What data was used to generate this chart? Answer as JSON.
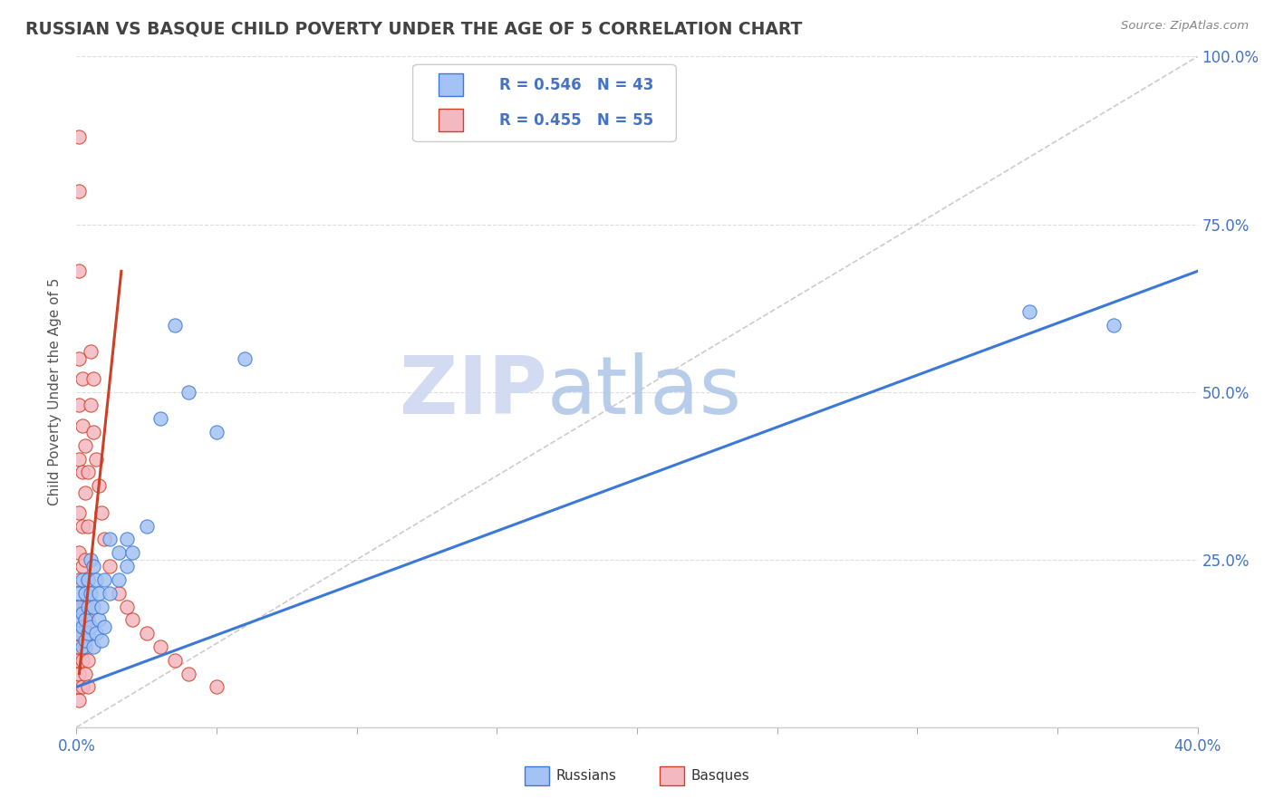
{
  "title": "RUSSIAN VS BASQUE CHILD POVERTY UNDER THE AGE OF 5 CORRELATION CHART",
  "source": "Source: ZipAtlas.com",
  "ylabel": "Child Poverty Under the Age of 5",
  "legend_russians": "Russians",
  "legend_basques": "Basques",
  "r_russian": "R = 0.546",
  "n_russian": "N = 43",
  "r_basque": "R = 0.455",
  "n_basque": "N = 55",
  "color_russian": "#a4c2f4",
  "color_basque": "#f4b8c1",
  "line_russian": "#3c78d8",
  "line_basque": "#cc4125",
  "diagonal_color": "#cccccc",
  "watermark_zip": "ZIP",
  "watermark_atlas": "atlas",
  "xlim": [
    0.0,
    0.4
  ],
  "ylim": [
    0.0,
    1.0
  ],
  "yticks": [
    0.0,
    0.25,
    0.5,
    0.75,
    1.0
  ],
  "ytick_labels": [
    "",
    "25.0%",
    "50.0%",
    "75.0%",
    "100.0%"
  ],
  "russian_scatter": [
    [
      0.001,
      0.14
    ],
    [
      0.001,
      0.16
    ],
    [
      0.001,
      0.18
    ],
    [
      0.001,
      0.2
    ],
    [
      0.002,
      0.12
    ],
    [
      0.002,
      0.15
    ],
    [
      0.002,
      0.17
    ],
    [
      0.002,
      0.22
    ],
    [
      0.003,
      0.13
    ],
    [
      0.003,
      0.16
    ],
    [
      0.003,
      0.2
    ],
    [
      0.004,
      0.14
    ],
    [
      0.004,
      0.18
    ],
    [
      0.004,
      0.22
    ],
    [
      0.005,
      0.15
    ],
    [
      0.005,
      0.2
    ],
    [
      0.005,
      0.25
    ],
    [
      0.006,
      0.12
    ],
    [
      0.006,
      0.18
    ],
    [
      0.006,
      0.24
    ],
    [
      0.007,
      0.14
    ],
    [
      0.007,
      0.22
    ],
    [
      0.008,
      0.16
    ],
    [
      0.008,
      0.2
    ],
    [
      0.009,
      0.13
    ],
    [
      0.009,
      0.18
    ],
    [
      0.01,
      0.15
    ],
    [
      0.01,
      0.22
    ],
    [
      0.012,
      0.2
    ],
    [
      0.012,
      0.28
    ],
    [
      0.015,
      0.22
    ],
    [
      0.015,
      0.26
    ],
    [
      0.018,
      0.24
    ],
    [
      0.018,
      0.28
    ],
    [
      0.02,
      0.26
    ],
    [
      0.025,
      0.3
    ],
    [
      0.03,
      0.46
    ],
    [
      0.035,
      0.6
    ],
    [
      0.04,
      0.5
    ],
    [
      0.05,
      0.44
    ],
    [
      0.06,
      0.55
    ],
    [
      0.34,
      0.62
    ],
    [
      0.37,
      0.6
    ]
  ],
  "basque_scatter": [
    [
      0.001,
      0.04
    ],
    [
      0.001,
      0.06
    ],
    [
      0.001,
      0.08
    ],
    [
      0.001,
      0.1
    ],
    [
      0.001,
      0.12
    ],
    [
      0.001,
      0.14
    ],
    [
      0.001,
      0.16
    ],
    [
      0.001,
      0.18
    ],
    [
      0.001,
      0.22
    ],
    [
      0.001,
      0.26
    ],
    [
      0.001,
      0.32
    ],
    [
      0.001,
      0.4
    ],
    [
      0.001,
      0.48
    ],
    [
      0.001,
      0.55
    ],
    [
      0.001,
      0.68
    ],
    [
      0.001,
      0.8
    ],
    [
      0.001,
      0.88
    ],
    [
      0.002,
      0.06
    ],
    [
      0.002,
      0.1
    ],
    [
      0.002,
      0.14
    ],
    [
      0.002,
      0.18
    ],
    [
      0.002,
      0.24
    ],
    [
      0.002,
      0.3
    ],
    [
      0.002,
      0.38
    ],
    [
      0.002,
      0.45
    ],
    [
      0.002,
      0.52
    ],
    [
      0.003,
      0.08
    ],
    [
      0.003,
      0.12
    ],
    [
      0.003,
      0.18
    ],
    [
      0.003,
      0.25
    ],
    [
      0.003,
      0.35
    ],
    [
      0.003,
      0.42
    ],
    [
      0.004,
      0.06
    ],
    [
      0.004,
      0.1
    ],
    [
      0.004,
      0.16
    ],
    [
      0.004,
      0.22
    ],
    [
      0.004,
      0.3
    ],
    [
      0.004,
      0.38
    ],
    [
      0.005,
      0.48
    ],
    [
      0.005,
      0.56
    ],
    [
      0.006,
      0.44
    ],
    [
      0.006,
      0.52
    ],
    [
      0.007,
      0.4
    ],
    [
      0.008,
      0.36
    ],
    [
      0.009,
      0.32
    ],
    [
      0.01,
      0.28
    ],
    [
      0.012,
      0.24
    ],
    [
      0.015,
      0.2
    ],
    [
      0.018,
      0.18
    ],
    [
      0.02,
      0.16
    ],
    [
      0.025,
      0.14
    ],
    [
      0.03,
      0.12
    ],
    [
      0.035,
      0.1
    ],
    [
      0.04,
      0.08
    ],
    [
      0.05,
      0.06
    ]
  ],
  "russian_line_x": [
    0.0,
    0.4
  ],
  "russian_line_y": [
    0.06,
    0.68
  ],
  "basque_line_x": [
    0.001,
    0.016
  ],
  "basque_line_y": [
    0.08,
    0.68
  ],
  "background_color": "#ffffff",
  "grid_color": "#dddddd",
  "title_color": "#434343",
  "axis_color": "#4472c4",
  "watermark_color_zip": "#cdd8f0",
  "watermark_color_atlas": "#b0c8e8"
}
